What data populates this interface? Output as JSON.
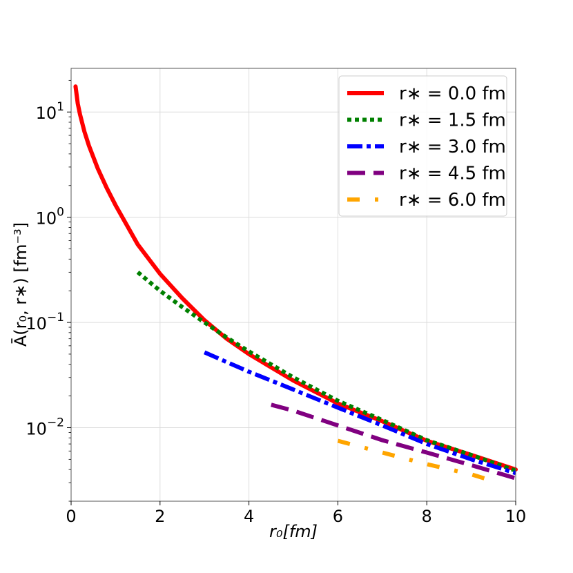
{
  "chart_data": {
    "type": "line",
    "title": "",
    "xlabel": "r₀[fm]",
    "ylabel": "Ā(r₀, r∗) [fm⁻³]",
    "xlim": [
      0,
      10
    ],
    "ylim": [
      0.002,
      26
    ],
    "yscale": "log",
    "grid": true,
    "legend_position": "top-right",
    "x_ticks": [
      0,
      2,
      4,
      6,
      8,
      10
    ],
    "x_tick_labels": [
      "0",
      "2",
      "4",
      "6",
      "8",
      "10"
    ],
    "y_ticks": [
      {
        "value": 10,
        "base": "10",
        "exp": "1"
      },
      {
        "value": 1,
        "base": "10",
        "exp": "0"
      },
      {
        "value": 0.1,
        "base": "10",
        "exp": "−1"
      },
      {
        "value": 0.01,
        "base": "10",
        "exp": "−2"
      }
    ],
    "series": [
      {
        "name": "r∗ = 0.0 fm",
        "legend_label": "r∗ = 0.0 fm",
        "color": "#ff0000",
        "style": "solid",
        "x": [
          0.1,
          0.15,
          0.2,
          0.3,
          0.4,
          0.6,
          0.8,
          1.0,
          1.5,
          2.0,
          2.5,
          3.0,
          3.5,
          4.0,
          5.0,
          6.0,
          7.0,
          8.0,
          9.0,
          10.0
        ],
        "y": [
          17.5,
          12.0,
          9.5,
          6.5,
          4.8,
          2.9,
          1.9,
          1.3,
          0.55,
          0.29,
          0.17,
          0.105,
          0.07,
          0.05,
          0.028,
          0.017,
          0.0115,
          0.0075,
          0.0055,
          0.004
        ]
      },
      {
        "name": "r∗ = 1.5 fm",
        "legend_label": "r∗ = 1.5 fm",
        "color": "#008000",
        "style": "dotted",
        "x": [
          1.5,
          2.0,
          2.5,
          3.0,
          3.5,
          4.0,
          5.0,
          6.0,
          7.0,
          8.0,
          9.0,
          10.0
        ],
        "y": [
          0.3,
          0.2,
          0.14,
          0.1,
          0.072,
          0.053,
          0.03,
          0.018,
          0.0118,
          0.0076,
          0.0055,
          0.0039
        ]
      },
      {
        "name": "r∗ = 3.0 fm",
        "legend_label": "r∗ = 3.0 fm",
        "color": "#0000ff",
        "style": "dashdot",
        "x": [
          3.0,
          3.5,
          4.0,
          4.5,
          5.0,
          6.0,
          7.0,
          8.0,
          9.0,
          10.0
        ],
        "y": [
          0.052,
          0.042,
          0.034,
          0.028,
          0.023,
          0.0155,
          0.0105,
          0.007,
          0.005,
          0.0037
        ]
      },
      {
        "name": "r∗ = 4.5 fm",
        "legend_label": "r∗ = 4.5 fm",
        "color": "#800080",
        "style": "dashed",
        "x": [
          4.5,
          5.0,
          6.0,
          7.0,
          8.0,
          9.0,
          10.0
        ],
        "y": [
          0.0165,
          0.0145,
          0.0105,
          0.0076,
          0.0058,
          0.0044,
          0.0033
        ]
      },
      {
        "name": "r∗ = 6.0 fm",
        "legend_label": "r∗ = 6.0 fm",
        "color": "#ffa500",
        "style": "sparse-dashdot",
        "x": [
          6.0,
          7.0,
          8.0,
          9.0,
          9.5
        ],
        "y": [
          0.0075,
          0.0058,
          0.0045,
          0.0036,
          0.0031
        ]
      }
    ]
  }
}
